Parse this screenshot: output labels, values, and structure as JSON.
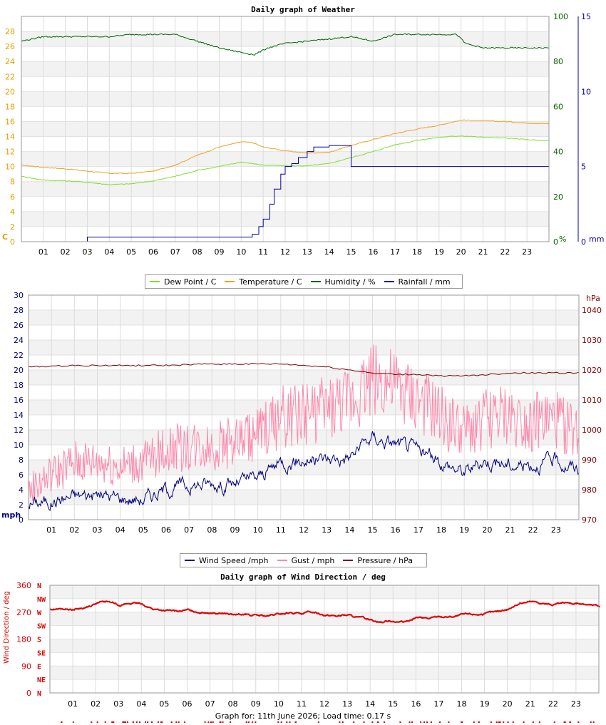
{
  "weather_chart": {
    "title": "Daily graph of Weather",
    "left_unit": "C",
    "humidity_unit": "%",
    "rain_unit": "mm",
    "legend": [
      {
        "label": "Dew Point / C",
        "color": "#7ee02c"
      },
      {
        "label": "Temperature / C",
        "color": "#f0a020"
      },
      {
        "label": "Humidity / %",
        "color": "#006400"
      },
      {
        "label": "Rainfall / mm",
        "color": "#0000aa"
      }
    ]
  },
  "wind_chart": {
    "left_unit": "mph",
    "right_unit": "hPa",
    "legend": [
      {
        "label": "Wind Speed /mph",
        "color": "#000080"
      },
      {
        "label": "Gust / mph",
        "color": "#ff88aa"
      },
      {
        "label": "Pressure / hPa",
        "color": "#800000"
      }
    ]
  },
  "direction_chart": {
    "title": "Daily graph of Wind Direction / deg",
    "ylabel": "Wind Direction / deg"
  },
  "footer": "Graph for: 11th June 2026; Load time: 0.17 s",
  "chart_data": [
    {
      "type": "line",
      "title": "Daily graph of Weather",
      "xlim": [
        0,
        24
      ],
      "x_ticks": [
        "01",
        "02",
        "03",
        "04",
        "05",
        "06",
        "07",
        "08",
        "09",
        "10",
        "11",
        "12",
        "13",
        "14",
        "15",
        "16",
        "17",
        "18",
        "19",
        "20",
        "21",
        "22",
        "23"
      ],
      "y_axes": {
        "left": {
          "unit": "C",
          "range": [
            0,
            30
          ],
          "ticks": [
            0,
            2,
            4,
            6,
            8,
            10,
            12,
            14,
            16,
            18,
            20,
            22,
            24,
            26,
            28
          ]
        },
        "humidity": {
          "unit": "%",
          "range": [
            0,
            100
          ],
          "ticks": [
            0,
            20,
            40,
            60,
            80,
            100
          ]
        },
        "rain": {
          "unit": "mm",
          "range": [
            0,
            15
          ],
          "ticks": [
            0,
            5,
            10,
            15
          ]
        }
      },
      "grid": true,
      "series": [
        {
          "name": "Temperature / C",
          "color": "#f0a020",
          "axis": "left",
          "x": [
            0,
            1,
            2,
            3,
            4,
            5,
            6,
            7,
            8,
            9,
            10,
            10.5,
            11,
            12,
            13,
            14,
            15,
            16,
            17,
            18,
            19,
            20,
            21,
            22,
            23,
            24
          ],
          "y": [
            10.2,
            9.9,
            9.7,
            9.4,
            9.1,
            9.1,
            9.4,
            10.2,
            11.5,
            12.6,
            13.3,
            13.2,
            12.6,
            12.1,
            11.8,
            11.9,
            12.8,
            13.6,
            14.4,
            15.0,
            15.5,
            16.2,
            16.1,
            16.0,
            15.8,
            15.7
          ]
        },
        {
          "name": "Dew Point / C",
          "color": "#7ee02c",
          "axis": "left",
          "x": [
            0,
            1,
            2,
            3,
            4,
            5,
            6,
            7,
            8,
            9,
            10,
            11,
            12,
            13,
            14,
            15,
            16,
            17,
            18,
            19,
            20,
            21,
            22,
            23,
            24
          ],
          "y": [
            8.7,
            8.2,
            8.1,
            7.9,
            7.6,
            7.7,
            8.1,
            8.7,
            9.5,
            10.0,
            10.6,
            10.2,
            10.1,
            10.1,
            10.4,
            11.2,
            12.0,
            12.9,
            13.5,
            13.9,
            14.1,
            13.9,
            13.8,
            13.6,
            13.4
          ]
        },
        {
          "name": "Humidity / %",
          "color": "#006400",
          "axis": "humidity",
          "x": [
            0,
            1,
            2,
            3,
            4,
            5,
            6,
            7,
            8,
            9,
            10,
            10.6,
            11.2,
            12,
            13,
            14,
            15,
            16,
            17,
            18,
            19,
            19.8,
            20.2,
            21,
            22,
            23,
            24
          ],
          "y": [
            89,
            91,
            91,
            91,
            91,
            92,
            92,
            92,
            89,
            86,
            84,
            83,
            86,
            88,
            89,
            90,
            91,
            89,
            92,
            92,
            92,
            92,
            88,
            86,
            86,
            86,
            86
          ]
        },
        {
          "name": "Rainfall / mm",
          "color": "#0000aa",
          "axis": "rain",
          "x": [
            0,
            2.9,
            3,
            10.3,
            10.5,
            10.8,
            11.0,
            11.3,
            11.5,
            11.8,
            12.0,
            12.3,
            12.6,
            13.0,
            13.3,
            14.0,
            15,
            24
          ],
          "y": [
            0,
            0,
            0.3,
            0.3,
            0.5,
            1.0,
            1.5,
            2.5,
            3.5,
            4.5,
            5.0,
            5.2,
            5.6,
            6.0,
            6.3,
            6.4,
            5.0,
            5.0
          ]
        }
      ]
    },
    {
      "type": "line",
      "xlim": [
        0,
        24
      ],
      "x_ticks": [
        "01",
        "02",
        "03",
        "04",
        "05",
        "06",
        "07",
        "08",
        "09",
        "10",
        "11",
        "12",
        "13",
        "14",
        "15",
        "16",
        "17",
        "18",
        "19",
        "20",
        "21",
        "22",
        "23"
      ],
      "y_axes": {
        "left": {
          "unit": "mph",
          "range": [
            0,
            30
          ],
          "ticks": [
            0,
            2,
            4,
            6,
            8,
            10,
            12,
            14,
            16,
            18,
            20,
            22,
            24,
            26,
            28,
            30
          ]
        },
        "right": {
          "unit": "hPa",
          "range": [
            970,
            1045
          ],
          "ticks": [
            970,
            980,
            990,
            1000,
            1010,
            1020,
            1030,
            1040
          ]
        }
      },
      "grid": true,
      "series": [
        {
          "name": "Wind Speed /mph",
          "color": "#000080",
          "axis": "left",
          "x": [
            0,
            1,
            2,
            3,
            4,
            5,
            6,
            7,
            8,
            9,
            10,
            11,
            12,
            13,
            14,
            15,
            16,
            17,
            18,
            19,
            20,
            21,
            22,
            23,
            24
          ],
          "y": [
            2.2,
            2.5,
            3.2,
            3.4,
            2.9,
            2.8,
            4.2,
            4.6,
            4.9,
            4.8,
            5.6,
            7.7,
            8.0,
            8.1,
            8.4,
            11.0,
            10.2,
            9.2,
            7.7,
            6.4,
            8.0,
            7.3,
            7.5,
            7.8,
            6.8
          ]
        },
        {
          "name": "Gust / mph",
          "color": "#ff88aa",
          "axis": "left",
          "x": [
            0,
            1,
            2,
            3,
            4,
            5,
            6,
            7,
            8,
            9,
            10,
            11,
            12,
            13,
            14,
            15,
            16,
            17,
            18,
            19,
            20,
            21,
            22,
            23,
            24
          ],
          "y": [
            3.0,
            5.0,
            6.5,
            6.6,
            6.0,
            6.5,
            8.0,
            8.5,
            8.5,
            9.0,
            10.0,
            12.0,
            12.5,
            13.0,
            14.0,
            17.0,
            15.5,
            14.0,
            12.0,
            10.0,
            12.0,
            12.0,
            11.5,
            11.5,
            10.0
          ]
        },
        {
          "name": "Pressure / hPa",
          "color": "#800000",
          "axis": "right",
          "x": [
            0,
            2,
            4,
            6,
            8,
            10,
            11,
            12,
            13,
            14,
            15,
            16,
            17,
            18,
            19,
            20,
            21,
            22,
            23,
            24
          ],
          "y": [
            1021,
            1021.5,
            1021.5,
            1021.5,
            1022,
            1022,
            1022,
            1021.5,
            1021,
            1020,
            1019,
            1018.5,
            1018.5,
            1018,
            1018,
            1018.5,
            1019,
            1019,
            1019,
            1019
          ]
        }
      ]
    },
    {
      "type": "scatter",
      "title": "Daily graph of Wind Direction / deg",
      "ylabel": "Wind Direction / deg",
      "xlim": [
        0,
        24
      ],
      "x_ticks": [
        "01",
        "02",
        "03",
        "04",
        "05",
        "06",
        "07",
        "08",
        "09",
        "10",
        "11",
        "12",
        "13",
        "14",
        "15",
        "16",
        "17",
        "18",
        "19",
        "20",
        "21",
        "22",
        "23"
      ],
      "ylim": [
        0,
        360
      ],
      "y_ticks": [
        0,
        90,
        180,
        270,
        360
      ],
      "compass_labels": [
        "N",
        "NW",
        "W",
        "SW",
        "S",
        "SE",
        "E",
        "NE",
        "N"
      ],
      "grid": true,
      "series": [
        {
          "name": "Wind Direction / deg",
          "color": "#dd0000",
          "x": [
            0,
            0.5,
            1,
            1.5,
            2,
            2.5,
            3,
            3.5,
            4,
            4.5,
            5,
            5.5,
            6,
            6.5,
            7,
            7.5,
            8,
            8.5,
            9,
            9.5,
            10,
            10.5,
            11,
            11.5,
            12,
            12.5,
            13,
            13.5,
            14,
            14.5,
            15,
            15.5,
            16,
            16.5,
            17,
            17.5,
            18,
            18.5,
            19,
            19.5,
            20,
            20.5,
            21,
            21.5,
            22,
            22.5,
            23,
            23.5,
            24
          ],
          "y": [
            280,
            280,
            280,
            285,
            300,
            305,
            295,
            300,
            297,
            280,
            275,
            272,
            276,
            271,
            270,
            268,
            260,
            262,
            258,
            256,
            262,
            268,
            266,
            270,
            262,
            258,
            260,
            250,
            245,
            238,
            242,
            235,
            252,
            248,
            255,
            255,
            260,
            262,
            265,
            270,
            280,
            300,
            305,
            300,
            295,
            298,
            300,
            295,
            290
          ]
        }
      ]
    }
  ]
}
